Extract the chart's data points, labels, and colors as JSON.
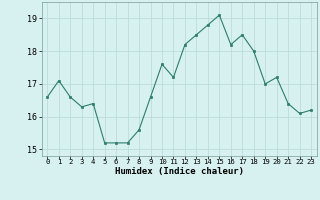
{
  "x": [
    0,
    1,
    2,
    3,
    4,
    5,
    6,
    7,
    8,
    9,
    10,
    11,
    12,
    13,
    14,
    15,
    16,
    17,
    18,
    19,
    20,
    21,
    22,
    23
  ],
  "y": [
    16.6,
    17.1,
    16.6,
    16.3,
    16.4,
    15.2,
    15.2,
    15.2,
    15.6,
    16.6,
    17.6,
    17.2,
    18.2,
    18.5,
    18.8,
    19.1,
    18.2,
    18.5,
    18.0,
    17.0,
    17.2,
    16.4,
    16.1,
    16.2
  ],
  "xlabel": "Humidex (Indice chaleur)",
  "ylim": [
    14.8,
    19.5
  ],
  "xlim": [
    -0.5,
    23.5
  ],
  "yticks": [
    15,
    16,
    17,
    18,
    19
  ],
  "xticks": [
    0,
    1,
    2,
    3,
    4,
    5,
    6,
    7,
    8,
    9,
    10,
    11,
    12,
    13,
    14,
    15,
    16,
    17,
    18,
    19,
    20,
    21,
    22,
    23
  ],
  "line_color": "#2e7d6e",
  "marker_color": "#2e7d6e",
  "bg_color": "#d7f0f0",
  "grid_color": "#b8d8d8",
  "spine_color": "#7a9a9a"
}
